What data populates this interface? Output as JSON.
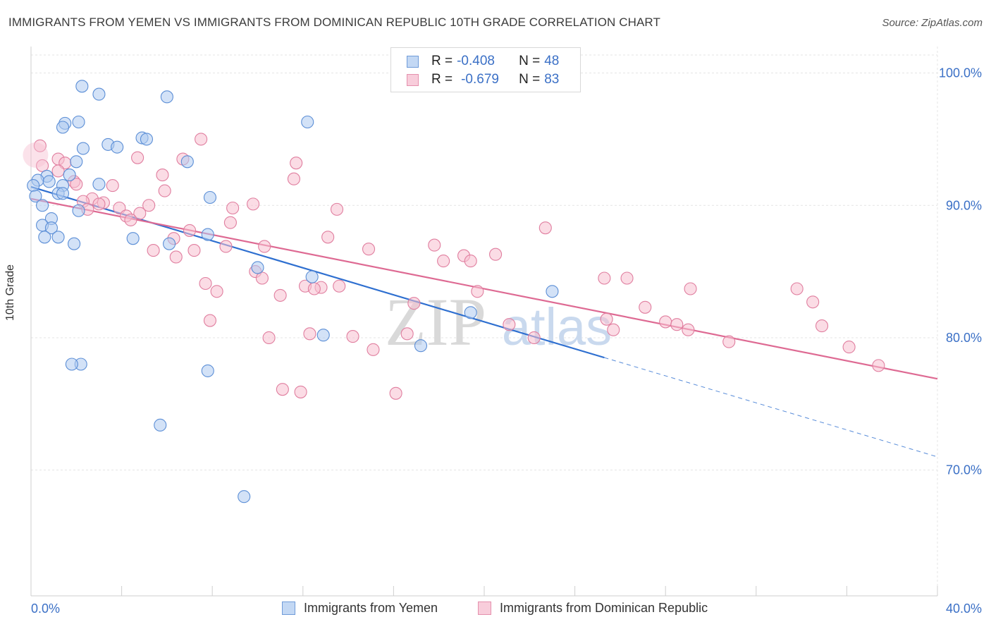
{
  "title": "IMMIGRANTS FROM YEMEN VS IMMIGRANTS FROM DOMINICAN REPUBLIC 10TH GRADE CORRELATION CHART",
  "source": "Source: ZipAtlas.com",
  "watermark": {
    "zip": "ZIP",
    "atlas": "atlas"
  },
  "legend": {
    "rows": [
      {
        "r_label": "R =",
        "r_value": "-0.408",
        "n_label": "N =",
        "n_value": "48"
      },
      {
        "r_label": "R =",
        "r_value": "-0.679",
        "n_label": "N =",
        "n_value": "83"
      }
    ],
    "bottom": [
      "Immigrants from Yemen",
      "Immigrants from Dominican Republic"
    ]
  },
  "colors": {
    "blue_fill": "#aecbf0",
    "blue_stroke": "#5b8ed6",
    "blue_line": "#2e6fd0",
    "pink_fill": "#f7bfd0",
    "pink_stroke": "#e07e9f",
    "pink_line": "#de6a93",
    "tick_label": "#3b70c6"
  },
  "chart_data": {
    "type": "scatter",
    "title": "IMMIGRANTS FROM YEMEN VS IMMIGRANTS FROM DOMINICAN REPUBLIC 10TH GRADE CORRELATION CHART",
    "xlabel": "",
    "ylabel": "10th Grade",
    "xlim": [
      0,
      40
    ],
    "ylim": [
      60.5,
      102
    ],
    "x_tick_labels": [
      "0.0%",
      "40.0%"
    ],
    "y_ticks": [
      70,
      80,
      90,
      100
    ],
    "y_tick_labels": [
      "70.0%",
      "80.0%",
      "90.0%",
      "100.0%"
    ],
    "grid": true,
    "legend_position": "top-center",
    "series": [
      {
        "name": "Immigrants from Yemen",
        "color": "#5b8ed6",
        "points": [
          [
            2.25,
            99.0
          ],
          [
            3.0,
            98.4
          ],
          [
            6.0,
            98.2
          ],
          [
            1.5,
            96.2
          ],
          [
            2.1,
            96.3
          ],
          [
            12.2,
            96.3
          ],
          [
            1.4,
            95.9
          ],
          [
            4.9,
            95.1
          ],
          [
            5.1,
            95.0
          ],
          [
            3.4,
            94.6
          ],
          [
            3.8,
            94.4
          ],
          [
            2.3,
            94.3
          ],
          [
            2.0,
            93.3
          ],
          [
            6.9,
            93.3
          ],
          [
            0.7,
            92.2
          ],
          [
            1.7,
            92.3
          ],
          [
            0.3,
            91.9
          ],
          [
            0.8,
            91.8
          ],
          [
            1.4,
            91.5
          ],
          [
            3.0,
            91.6
          ],
          [
            0.1,
            91.5
          ],
          [
            1.2,
            90.9
          ],
          [
            0.2,
            90.7
          ],
          [
            1.4,
            90.9
          ],
          [
            7.9,
            90.6
          ],
          [
            0.5,
            90.0
          ],
          [
            2.1,
            89.6
          ],
          [
            0.9,
            89.0
          ],
          [
            0.5,
            88.5
          ],
          [
            0.9,
            88.3
          ],
          [
            7.8,
            87.8
          ],
          [
            0.6,
            87.6
          ],
          [
            1.2,
            87.6
          ],
          [
            4.5,
            87.5
          ],
          [
            6.1,
            87.1
          ],
          [
            1.9,
            87.1
          ],
          [
            10.0,
            85.3
          ],
          [
            12.4,
            84.6
          ],
          [
            23.0,
            83.5
          ],
          [
            19.4,
            81.9
          ],
          [
            12.9,
            80.2
          ],
          [
            17.2,
            79.4
          ],
          [
            2.2,
            78.0
          ],
          [
            1.8,
            78.0
          ],
          [
            7.8,
            77.5
          ],
          [
            5.7,
            73.4
          ],
          [
            9.4,
            68.0
          ]
        ],
        "trend": {
          "x": [
            0,
            25.3
          ],
          "y": [
            91.4,
            78.5
          ],
          "dash_to": [
            40,
            71.0
          ]
        }
      },
      {
        "name": "Immigrants from Dominican Republic",
        "color": "#e07e9f",
        "points": [
          [
            0.4,
            94.5
          ],
          [
            7.5,
            95.0
          ],
          [
            4.7,
            93.6
          ],
          [
            1.2,
            93.5
          ],
          [
            6.7,
            93.5
          ],
          [
            0.5,
            93.0
          ],
          [
            11.7,
            93.2
          ],
          [
            1.5,
            93.2
          ],
          [
            1.2,
            92.6
          ],
          [
            5.8,
            92.3
          ],
          [
            11.6,
            92.0
          ],
          [
            1.9,
            91.8
          ],
          [
            2.0,
            91.6
          ],
          [
            3.6,
            91.5
          ],
          [
            5.9,
            91.1
          ],
          [
            2.7,
            90.5
          ],
          [
            2.3,
            90.3
          ],
          [
            3.2,
            90.2
          ],
          [
            3.0,
            90.1
          ],
          [
            9.8,
            90.1
          ],
          [
            5.2,
            90.0
          ],
          [
            8.9,
            89.8
          ],
          [
            3.9,
            89.8
          ],
          [
            2.5,
            89.7
          ],
          [
            13.5,
            89.7
          ],
          [
            4.8,
            89.4
          ],
          [
            4.2,
            89.2
          ],
          [
            4.4,
            88.9
          ],
          [
            8.8,
            88.7
          ],
          [
            22.7,
            88.3
          ],
          [
            7.0,
            88.1
          ],
          [
            13.1,
            87.6
          ],
          [
            6.3,
            87.5
          ],
          [
            17.8,
            87.0
          ],
          [
            8.6,
            86.9
          ],
          [
            10.3,
            86.9
          ],
          [
            14.9,
            86.7
          ],
          [
            5.4,
            86.6
          ],
          [
            7.2,
            86.6
          ],
          [
            6.4,
            86.1
          ],
          [
            19.1,
            86.2
          ],
          [
            20.5,
            86.3
          ],
          [
            18.2,
            85.8
          ],
          [
            19.4,
            85.8
          ],
          [
            9.9,
            85.0
          ],
          [
            10.2,
            84.5
          ],
          [
            25.3,
            84.5
          ],
          [
            26.3,
            84.5
          ],
          [
            7.7,
            84.1
          ],
          [
            12.1,
            83.9
          ],
          [
            13.6,
            83.9
          ],
          [
            12.8,
            83.8
          ],
          [
            12.5,
            83.7
          ],
          [
            29.1,
            83.7
          ],
          [
            19.7,
            83.5
          ],
          [
            8.2,
            83.5
          ],
          [
            33.8,
            83.7
          ],
          [
            11.0,
            83.2
          ],
          [
            34.5,
            82.7
          ],
          [
            16.9,
            82.6
          ],
          [
            27.1,
            82.3
          ],
          [
            7.9,
            81.3
          ],
          [
            25.4,
            81.4
          ],
          [
            28.0,
            81.2
          ],
          [
            28.5,
            81.0
          ],
          [
            21.1,
            81.0
          ],
          [
            34.9,
            80.9
          ],
          [
            29.0,
            80.6
          ],
          [
            25.7,
            80.6
          ],
          [
            12.3,
            80.3
          ],
          [
            16.6,
            80.3
          ],
          [
            10.5,
            80.0
          ],
          [
            14.2,
            80.1
          ],
          [
            22.2,
            80.0
          ],
          [
            30.8,
            79.7
          ],
          [
            36.1,
            79.3
          ],
          [
            15.1,
            79.1
          ],
          [
            37.4,
            77.9
          ],
          [
            11.1,
            76.1
          ],
          [
            11.9,
            75.9
          ],
          [
            16.1,
            75.8
          ]
        ],
        "trend": {
          "x": [
            0,
            40
          ],
          "y": [
            90.5,
            76.9
          ]
        }
      }
    ]
  }
}
